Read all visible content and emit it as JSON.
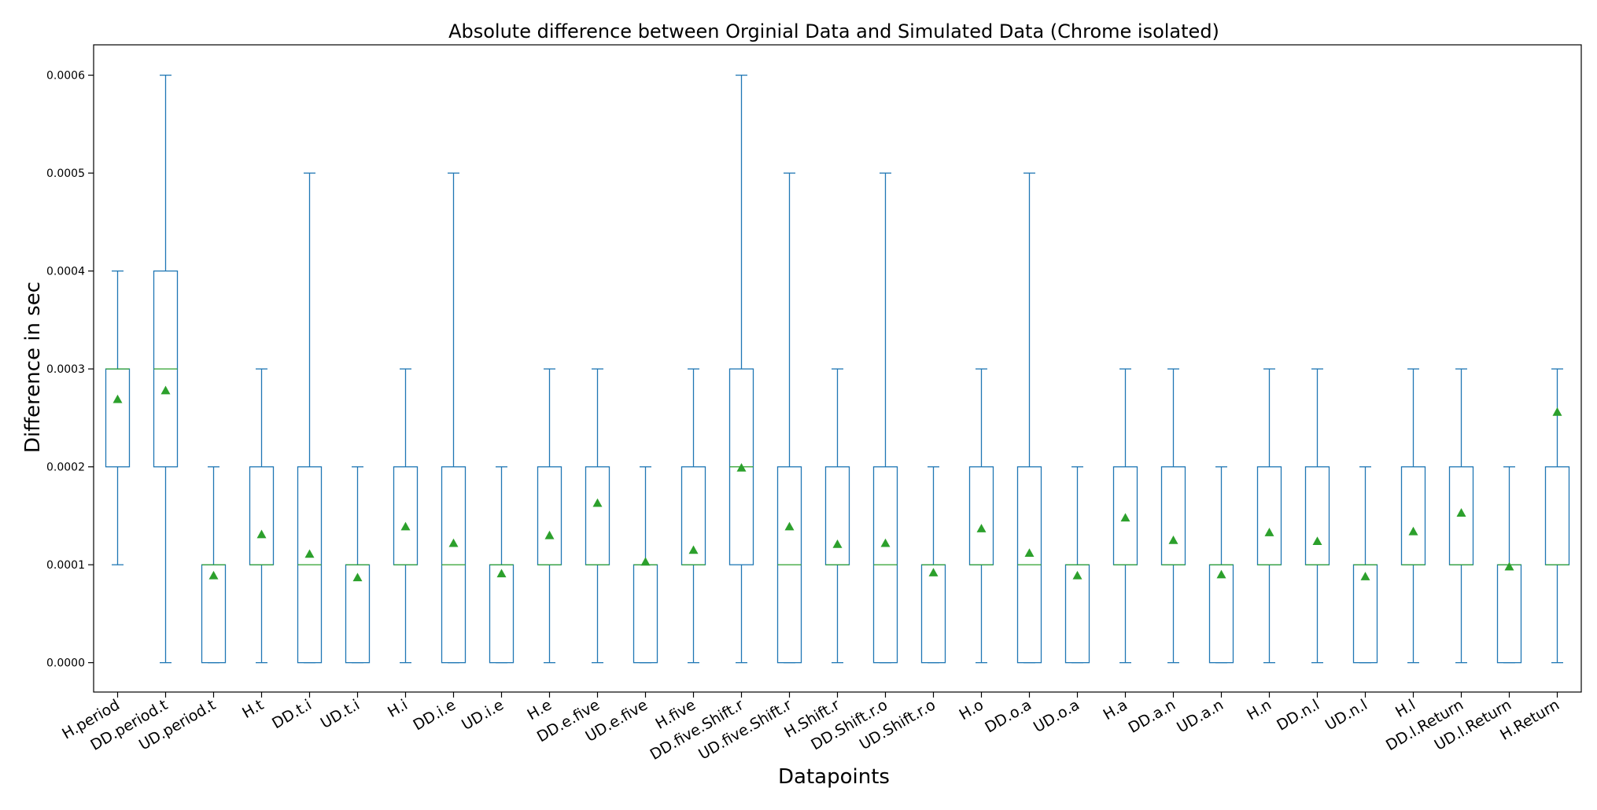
{
  "chart_data": {
    "type": "box",
    "title": "Absolute difference between Orginial Data and Simulated Data (Chrome isolated)",
    "xlabel": "Datapoints",
    "ylabel": "Difference in sec",
    "ylim": [
      -3e-05,
      0.000631
    ],
    "yticks": [
      "0.0000",
      "0.0001",
      "0.0002",
      "0.0003",
      "0.0004",
      "0.0005",
      "0.0006"
    ],
    "colors": {
      "box": "#1f77b4",
      "median": "#2ca02c",
      "mean": "#2ca02c"
    },
    "grid": false,
    "categories": [
      "H.period",
      "DD.period.t",
      "UD.period.t",
      "H.t",
      "DD.t.i",
      "UD.t.i",
      "H.i",
      "DD.i.e",
      "UD.i.e",
      "H.e",
      "DD.e.five",
      "UD.e.five",
      "H.five",
      "DD.five.Shift.r",
      "UD.five.Shift.r",
      "H.Shift.r",
      "DD.Shift.r.o",
      "UD.Shift.r.o",
      "H.o",
      "DD.o.a",
      "UD.o.a",
      "H.a",
      "DD.a.n",
      "UD.a.n",
      "H.n",
      "DD.n.l",
      "UD.n.l",
      "H.l",
      "DD.l.Return",
      "UD.l.Return",
      "H.Return"
    ],
    "boxes": [
      {
        "whislo": 0.0001,
        "q1": 0.0002,
        "med": 0.0003,
        "q3": 0.0003,
        "whishi": 0.0004,
        "mean": 0.000269
      },
      {
        "whislo": 0.0,
        "q1": 0.0002,
        "med": 0.0003,
        "q3": 0.0004,
        "whishi": 0.0006,
        "mean": 0.000278
      },
      {
        "whislo": 0.0,
        "q1": 0.0,
        "med": 0.0001,
        "q3": 0.0001,
        "whishi": 0.0002,
        "mean": 8.9e-05
      },
      {
        "whislo": 0.0,
        "q1": 0.0001,
        "med": 0.0001,
        "q3": 0.0002,
        "whishi": 0.0003,
        "mean": 0.000131
      },
      {
        "whislo": 0.0,
        "q1": 0.0,
        "med": 0.0001,
        "q3": 0.0002,
        "whishi": 0.0005,
        "mean": 0.000111
      },
      {
        "whislo": 0.0,
        "q1": 0.0,
        "med": 0.0001,
        "q3": 0.0001,
        "whishi": 0.0002,
        "mean": 8.7e-05
      },
      {
        "whislo": 0.0,
        "q1": 0.0001,
        "med": 0.0001,
        "q3": 0.0002,
        "whishi": 0.0003,
        "mean": 0.000139
      },
      {
        "whislo": 0.0,
        "q1": 0.0,
        "med": 0.0001,
        "q3": 0.0002,
        "whishi": 0.0005,
        "mean": 0.000122
      },
      {
        "whislo": 0.0,
        "q1": 0.0,
        "med": 0.0001,
        "q3": 0.0001,
        "whishi": 0.0002,
        "mean": 9.1e-05
      },
      {
        "whislo": 0.0,
        "q1": 0.0001,
        "med": 0.0001,
        "q3": 0.0002,
        "whishi": 0.0003,
        "mean": 0.00013
      },
      {
        "whislo": 0.0,
        "q1": 0.0001,
        "med": 0.0001,
        "q3": 0.0002,
        "whishi": 0.0003,
        "mean": 0.000163
      },
      {
        "whislo": 0.0,
        "q1": 0.0,
        "med": 0.0001,
        "q3": 0.0001,
        "whishi": 0.0002,
        "mean": 0.000103
      },
      {
        "whislo": 0.0,
        "q1": 0.0001,
        "med": 0.0001,
        "q3": 0.0002,
        "whishi": 0.0003,
        "mean": 0.000115
      },
      {
        "whislo": 0.0,
        "q1": 0.0001,
        "med": 0.0002,
        "q3": 0.0003,
        "whishi": 0.0006,
        "mean": 0.000199
      },
      {
        "whislo": 0.0,
        "q1": 0.0,
        "med": 0.0001,
        "q3": 0.0002,
        "whishi": 0.0005,
        "mean": 0.000139
      },
      {
        "whislo": 0.0,
        "q1": 0.0001,
        "med": 0.0001,
        "q3": 0.0002,
        "whishi": 0.0003,
        "mean": 0.000121
      },
      {
        "whislo": 0.0,
        "q1": 0.0,
        "med": 0.0001,
        "q3": 0.0002,
        "whishi": 0.0005,
        "mean": 0.000122
      },
      {
        "whislo": 0.0,
        "q1": 0.0,
        "med": 0.0001,
        "q3": 0.0001,
        "whishi": 0.0002,
        "mean": 9.2e-05
      },
      {
        "whislo": 0.0,
        "q1": 0.0001,
        "med": 0.0001,
        "q3": 0.0002,
        "whishi": 0.0003,
        "mean": 0.000137
      },
      {
        "whislo": 0.0,
        "q1": 0.0,
        "med": 0.0001,
        "q3": 0.0002,
        "whishi": 0.0005,
        "mean": 0.000112
      },
      {
        "whislo": 0.0,
        "q1": 0.0,
        "med": 0.0001,
        "q3": 0.0001,
        "whishi": 0.0002,
        "mean": 8.9e-05
      },
      {
        "whislo": 0.0,
        "q1": 0.0001,
        "med": 0.0001,
        "q3": 0.0002,
        "whishi": 0.0003,
        "mean": 0.000148
      },
      {
        "whislo": 0.0,
        "q1": 0.0001,
        "med": 0.0001,
        "q3": 0.0002,
        "whishi": 0.0003,
        "mean": 0.000125
      },
      {
        "whislo": 0.0,
        "q1": 0.0,
        "med": 0.0001,
        "q3": 0.0001,
        "whishi": 0.0002,
        "mean": 9e-05
      },
      {
        "whislo": 0.0,
        "q1": 0.0001,
        "med": 0.0001,
        "q3": 0.0002,
        "whishi": 0.0003,
        "mean": 0.000133
      },
      {
        "whislo": 0.0,
        "q1": 0.0001,
        "med": 0.0001,
        "q3": 0.0002,
        "whishi": 0.0003,
        "mean": 0.000124
      },
      {
        "whislo": 0.0,
        "q1": 0.0,
        "med": 0.0001,
        "q3": 0.0001,
        "whishi": 0.0002,
        "mean": 8.8e-05
      },
      {
        "whislo": 0.0,
        "q1": 0.0001,
        "med": 0.0001,
        "q3": 0.0002,
        "whishi": 0.0003,
        "mean": 0.000134
      },
      {
        "whislo": 0.0,
        "q1": 0.0001,
        "med": 0.0001,
        "q3": 0.0002,
        "whishi": 0.0003,
        "mean": 0.000153
      },
      {
        "whislo": 0.0,
        "q1": 0.0,
        "med": 0.0001,
        "q3": 0.0001,
        "whishi": 0.0002,
        "mean": 9.8e-05
      },
      {
        "whislo": 0.0,
        "q1": 0.0001,
        "med": 0.0001,
        "q3": 0.0002,
        "whishi": 0.0003,
        "mean": 0.000256
      }
    ]
  }
}
